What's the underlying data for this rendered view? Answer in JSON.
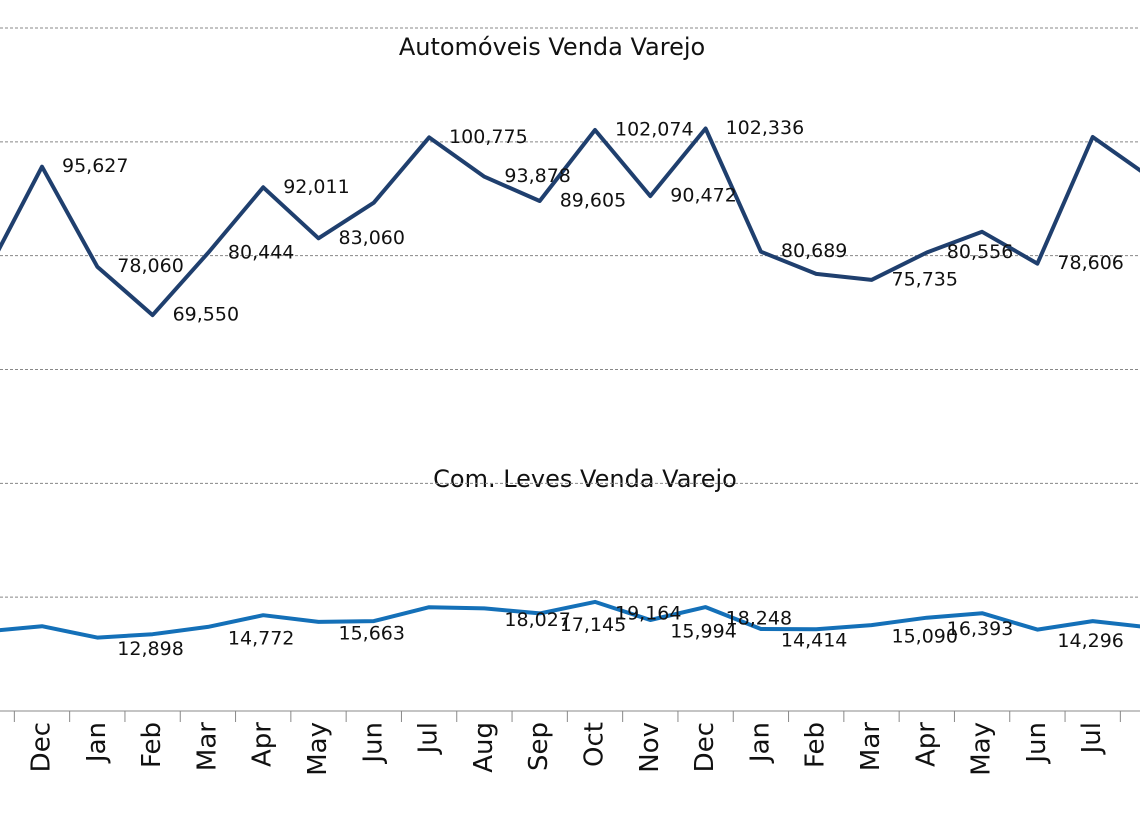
{
  "chart_data": {
    "type": "line",
    "title": "Automóveis Venda Varejo",
    "subtitle": "Com. Leves Venda Varejo",
    "categories": [
      null,
      "Dec",
      "Jan",
      "Feb",
      "Mar",
      "Apr",
      "May",
      "Jun",
      "Jul",
      "Aug",
      "Sep",
      "Oct",
      "Nov",
      "Dec",
      "Jan",
      "Feb",
      "Mar",
      "Apr",
      "May",
      "Jun",
      "Jul",
      null
    ],
    "series": [
      {
        "name": "Automóveis Venda Varejo",
        "color": "#1f3f6e",
        "values": [
          77000,
          95627,
          78060,
          69550,
          80444,
          92011,
          83060,
          89300,
          100775,
          93878,
          89605,
          102074,
          90472,
          102336,
          80689,
          76800,
          75735,
          80556,
          84200,
          78606,
          100850,
          94000
        ],
        "value_labels": [
          null,
          "95,627",
          "78,060",
          "69,550",
          "80,444",
          "92,011",
          "83,060",
          null,
          "100,775",
          "93,878",
          "89,605",
          "102,074",
          "90,472",
          "102,336",
          "80,689",
          null,
          "75,735",
          "80,556",
          null,
          "78,606",
          null,
          null
        ]
      },
      {
        "name": "Com. Leves Venda Varejo",
        "color": "#1470b8",
        "values": [
          14000,
          14900,
          12898,
          13500,
          14772,
          16840,
          15663,
          15790,
          18240,
          18027,
          17145,
          19164,
          15994,
          18248,
          14414,
          14380,
          15090,
          16393,
          17190,
          14296,
          15790,
          14700
        ],
        "value_labels": [
          null,
          null,
          "12,898",
          null,
          "14,772",
          null,
          "15,663",
          null,
          null,
          "18,027",
          "17,145",
          "19,164",
          "15,994",
          "18,248",
          "14,414",
          null,
          "15,090",
          "16,393",
          null,
          "14,296",
          null,
          null
        ]
      }
    ],
    "ylim": [
      0,
      120000
    ],
    "yticks": [
      0,
      20000,
      40000,
      60000,
      80000,
      100000,
      120000
    ],
    "grid": true
  }
}
